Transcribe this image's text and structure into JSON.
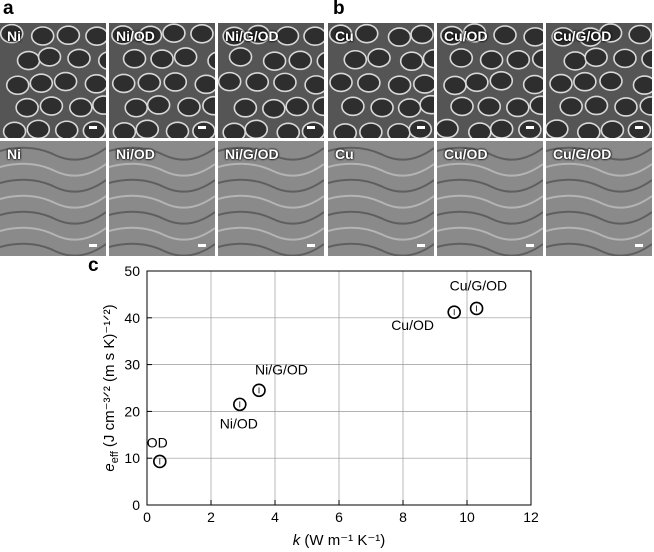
{
  "panels": {
    "a": {
      "letter": "a",
      "tiles": [
        {
          "label": "Ni",
          "kind": "foam"
        },
        {
          "label": "Ni/OD",
          "kind": "foam"
        },
        {
          "label": "Ni/G/OD",
          "kind": "foam"
        },
        {
          "label": "Ni",
          "kind": "surface"
        },
        {
          "label": "Ni/OD",
          "kind": "surface"
        },
        {
          "label": "Ni/G/OD",
          "kind": "surface"
        }
      ]
    },
    "b": {
      "letter": "b",
      "tiles": [
        {
          "label": "Cu",
          "kind": "foam"
        },
        {
          "label": "Cu/OD",
          "kind": "foam"
        },
        {
          "label": "Cu/G/OD",
          "kind": "foam"
        },
        {
          "label": "Cu",
          "kind": "surface"
        },
        {
          "label": "Cu/OD",
          "kind": "surface"
        },
        {
          "label": "Cu/G/OD",
          "kind": "surface"
        }
      ]
    },
    "c": {
      "letter": "c"
    }
  },
  "chart_data": {
    "type": "scatter",
    "xlabel_var": "k",
    "xlabel_units": "(W m⁻¹ K⁻¹)",
    "ylabel_var": "e",
    "ylabel_sub": "eff",
    "ylabel_units": "(J cm⁻³ᐟ² (m s K)⁻¹ᐟ²)",
    "xlim": [
      0,
      12
    ],
    "ylim": [
      0,
      50
    ],
    "xticks": [
      0,
      2,
      4,
      6,
      8,
      10,
      12
    ],
    "yticks": [
      0,
      10,
      20,
      30,
      40,
      50
    ],
    "grid": true,
    "points": [
      {
        "label": "OD",
        "x": 0.4,
        "y": 9.3
      },
      {
        "label": "Ni/OD",
        "x": 2.9,
        "y": 21.5
      },
      {
        "label": "Ni/G/OD",
        "x": 3.5,
        "y": 24.5
      },
      {
        "label": "Cu/OD",
        "x": 9.6,
        "y": 41.2
      },
      {
        "label": "Cu/G/OD",
        "x": 10.3,
        "y": 42.0
      }
    ]
  }
}
